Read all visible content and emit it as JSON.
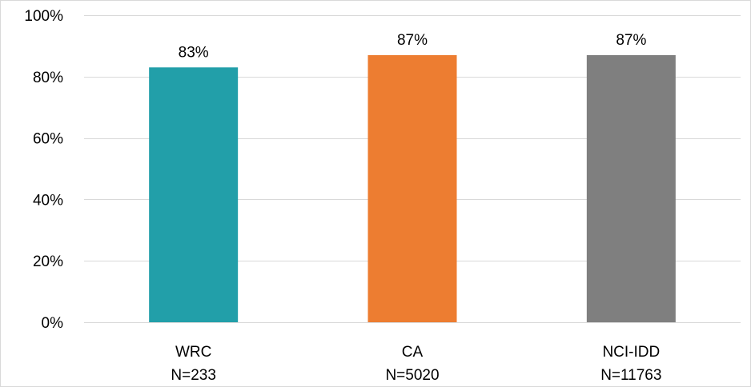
{
  "chart_data": {
    "type": "bar",
    "categories": [
      "WRC",
      "CA",
      "NCI-IDD"
    ],
    "category_sublabels": [
      "N=233",
      "N=5020",
      "N=11763"
    ],
    "values": [
      83,
      87,
      87
    ],
    "data_labels": [
      "83%",
      "87%",
      "87%"
    ],
    "bar_colors": [
      "#229fa9",
      "#ed7d31",
      "#7f7f7f"
    ],
    "ylim": [
      0,
      100
    ],
    "y_ticks": [
      0,
      20,
      40,
      60,
      80,
      100
    ],
    "y_tick_labels": [
      "0%",
      "20%",
      "40%",
      "60%",
      "80%",
      "100%"
    ],
    "grid": true,
    "gridline_color": "#d9d9d9",
    "legend": "none",
    "title": "",
    "xlabel": "",
    "ylabel": ""
  }
}
